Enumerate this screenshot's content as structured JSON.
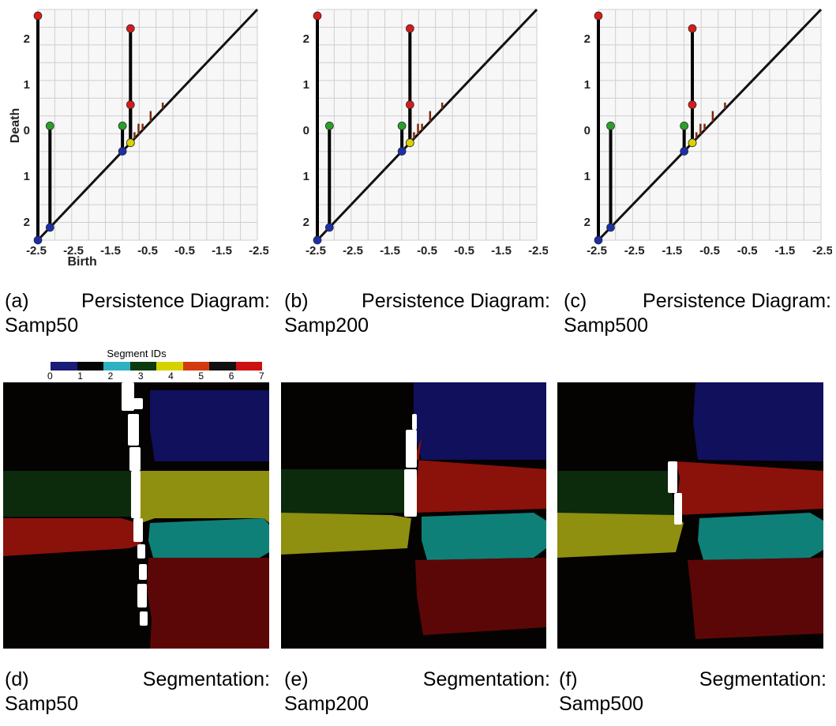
{
  "chart_data": [
    {
      "type": "scatter",
      "subtype": "persistence-diagram",
      "xlabel": "Birth",
      "ylabel": "Death",
      "x_ticks": [
        "-2.5",
        "-2.5",
        "-1.5",
        "-0.5",
        "-0.5",
        "-1.5",
        "-2.5"
      ],
      "y_ticks": [
        "2",
        "1",
        "0",
        "1",
        "2"
      ],
      "grid": true,
      "diagonal": true,
      "pairs": [
        {
          "birth": -2.7,
          "death": 2.6
        },
        {
          "birth": -2.4,
          "death": 0.0
        },
        {
          "birth": -0.6,
          "death": 0.0
        },
        {
          "birth": -0.4,
          "death": 2.3
        },
        {
          "birth": -0.4,
          "death": 0.5
        }
      ]
    },
    {
      "type": "scatter",
      "subtype": "persistence-diagram",
      "xlabel": "",
      "ylabel": "",
      "x_ticks": [
        "-2.5",
        "-2.5",
        "-1.5",
        "-0.5",
        "-0.5",
        "-1.5",
        "-2.5"
      ],
      "y_ticks": [
        "2",
        "1",
        "0",
        "1",
        "2"
      ],
      "grid": true,
      "diagonal": true,
      "pairs": [
        {
          "birth": -2.7,
          "death": 2.6
        },
        {
          "birth": -2.4,
          "death": 0.0
        },
        {
          "birth": -0.6,
          "death": 0.0
        },
        {
          "birth": -0.4,
          "death": 2.3
        },
        {
          "birth": -0.4,
          "death": 0.5
        }
      ]
    },
    {
      "type": "scatter",
      "subtype": "persistence-diagram",
      "xlabel": "",
      "ylabel": "",
      "x_ticks": [
        "-2.5",
        "-2.5",
        "-1.5",
        "-0.5",
        "-0.5",
        "-1.5",
        "-2.5"
      ],
      "y_ticks": [
        "2",
        "1",
        "0",
        "1",
        "2"
      ],
      "grid": true,
      "diagonal": true,
      "pairs": [
        {
          "birth": -2.7,
          "death": 2.6
        },
        {
          "birth": -2.4,
          "death": 0.0
        },
        {
          "birth": -0.6,
          "death": 0.0
        },
        {
          "birth": -0.4,
          "death": 2.3
        },
        {
          "birth": -0.4,
          "death": 0.5
        }
      ]
    }
  ],
  "legend": {
    "title": "Segment IDs",
    "labels": [
      "0",
      "1",
      "2",
      "3",
      "4",
      "5",
      "6",
      "7"
    ],
    "colors": [
      "#1b1b78",
      "#050505",
      "#2eb2c2",
      "#0d3b0d",
      "#d6d200",
      "#d43a0f",
      "#111111",
      "#cc1111"
    ]
  },
  "segmentation_colors": {
    "black": "#050202",
    "navy": "#10105c",
    "olive": "#8f8f10",
    "dark_green": "#0c2a0c",
    "red": "#8a120a",
    "teal": "#0f8078",
    "dark_red": "#5c0707",
    "white": "#ffffff"
  },
  "captions": [
    {
      "tag": "(a)",
      "text": "Persistence Diagram:",
      "name": "Samp50"
    },
    {
      "tag": "(b)",
      "text": "Persistence Diagram:",
      "name": "Samp200"
    },
    {
      "tag": "(c)",
      "text": "Persistence Diagram:",
      "name": "Samp500"
    },
    {
      "tag": "(d)",
      "text": "Segmentation:",
      "name": "Samp50"
    },
    {
      "tag": "(e)",
      "text": "Segmentation:",
      "name": "Samp200"
    },
    {
      "tag": "(f)",
      "text": "Segmentation:",
      "name": "Samp500"
    }
  ]
}
